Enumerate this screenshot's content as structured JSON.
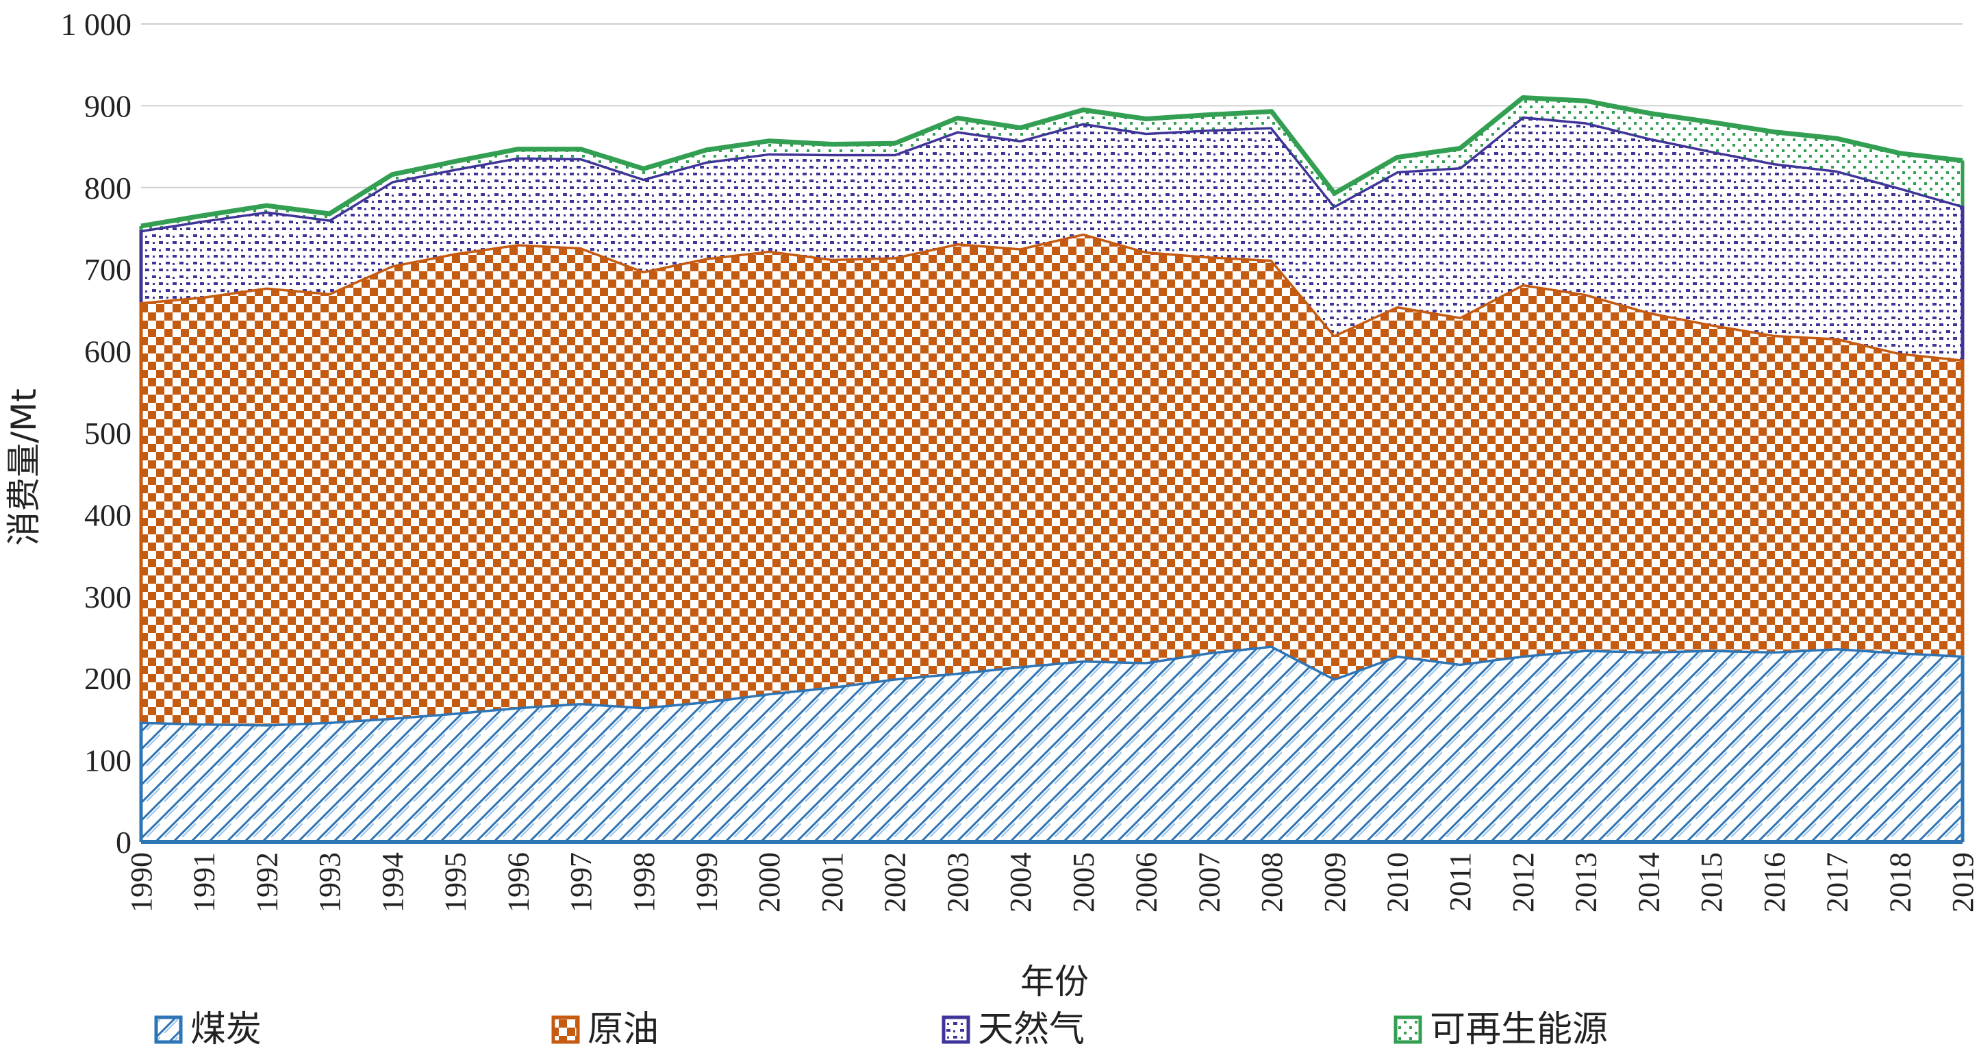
{
  "chart_data": {
    "type": "area",
    "stacked": true,
    "xlabel": "年份",
    "ylabel": "消费量/Mt",
    "ylim": [
      0,
      1000
    ],
    "yticks": [
      0,
      100,
      200,
      300,
      400,
      500,
      600,
      700,
      800,
      900,
      1000
    ],
    "ytick_labels": [
      "0",
      "100",
      "200",
      "300",
      "400",
      "500",
      "600",
      "700",
      "800",
      "900",
      "1 000"
    ],
    "grid": "horizontal",
    "legend_position": "bottom",
    "x": [
      1990,
      1991,
      1992,
      1993,
      1994,
      1995,
      1996,
      1997,
      1998,
      1999,
      2000,
      2001,
      2002,
      2003,
      2004,
      2005,
      2006,
      2007,
      2008,
      2009,
      2010,
      2011,
      2012,
      2013,
      2014,
      2015,
      2016,
      2017,
      2018,
      2019
    ],
    "x_labels": [
      "1990",
      "1991",
      "1992",
      "1993",
      "1994",
      "1995",
      "1996",
      "1997",
      "1998",
      "1999",
      "2000",
      "2001",
      "2002",
      "2003",
      "2004",
      "2005",
      "2006",
      "2007",
      "2008",
      "2009",
      "2010",
      "2011",
      "2012",
      "2013",
      "2014",
      "2015",
      "2016",
      "2017",
      "2018",
      "2019"
    ],
    "series": [
      {
        "name": "煤炭",
        "color": "#2E75B6",
        "pattern": "diagonal",
        "values": [
          147,
          145,
          144,
          147,
          152,
          158,
          165,
          170,
          165,
          172,
          182,
          190,
          200,
          207,
          215,
          222,
          220,
          232,
          240,
          200,
          228,
          218,
          228,
          235,
          233,
          235,
          233,
          237,
          232,
          228
        ]
      },
      {
        "name": "原油",
        "color": "#C55A11",
        "pattern": "checker",
        "values": [
          513,
          522,
          534,
          524,
          553,
          562,
          566,
          557,
          533,
          542,
          541,
          523,
          515,
          525,
          511,
          522,
          502,
          484,
          472,
          420,
          427,
          424,
          454,
          435,
          415,
          398,
          387,
          379,
          366,
          362
        ]
      },
      {
        "name": "天然气",
        "color": "#3F3498",
        "pattern": "dots",
        "values": [
          88,
          93,
          93,
          90,
          103,
          103,
          106,
          109,
          113,
          118,
          119,
          128,
          126,
          137,
          132,
          135,
          145,
          155,
          162,
          158,
          165,
          183,
          205,
          210,
          213,
          212,
          210,
          205,
          202,
          188
        ]
      },
      {
        "name": "可再生能源",
        "color": "#339F52",
        "pattern": "sparse-dots",
        "values": [
          5,
          6,
          7,
          7,
          8,
          9,
          10,
          11,
          12,
          14,
          15,
          12,
          13,
          16,
          15,
          16,
          17,
          18,
          19,
          15,
          17,
          23,
          23,
          26,
          30,
          35,
          38,
          39,
          42,
          55
        ]
      }
    ]
  }
}
